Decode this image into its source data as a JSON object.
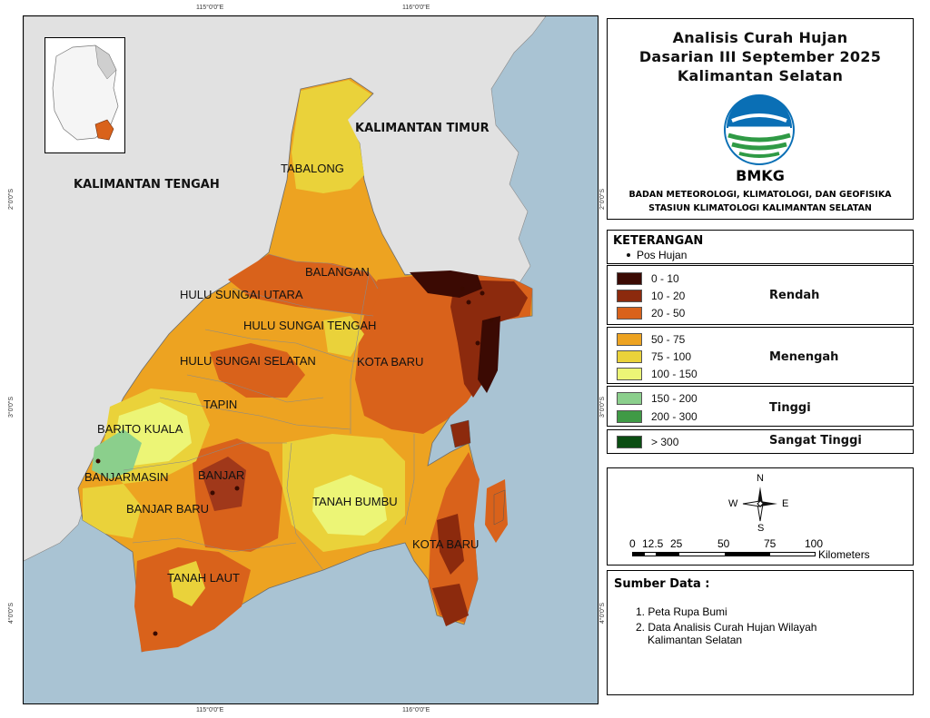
{
  "title": {
    "line1": "Analisis Curah Hujan",
    "line2": "Dasarian III September 2025",
    "line3": "Kalimantan Selatan"
  },
  "logo": {
    "text": "BMKG",
    "icon": "bmkg-logo"
  },
  "agency": {
    "line1": "BADAN METEOROLOGI, KLIMATOLOGI, DAN GEOFISIKA",
    "line2": "STASIUN KLIMATOLOGI KALIMANTAN SELATAN"
  },
  "legend": {
    "title": "KETERANGAN",
    "pos_hujan": "Pos Hujan",
    "groups": [
      {
        "category": "Rendah",
        "classes": [
          {
            "label": "0 - 10",
            "color": "#3b0a03"
          },
          {
            "label": "10 - 20",
            "color": "#8c2a0d"
          },
          {
            "label": "20 - 50",
            "color": "#d9621b"
          }
        ]
      },
      {
        "category": "Menengah",
        "classes": [
          {
            "label": "50 - 75",
            "color": "#eda321"
          },
          {
            "label": "75 - 100",
            "color": "#ead23a"
          },
          {
            "label": "100 - 150",
            "color": "#ecf576"
          }
        ]
      },
      {
        "category": "Tinggi",
        "classes": [
          {
            "label": "150 - 200",
            "color": "#8bcf8c"
          },
          {
            "label": "200 - 300",
            "color": "#3f9a45"
          }
        ]
      },
      {
        "category": "Sangat Tinggi",
        "classes": [
          {
            "label": "> 300",
            "color": "#0b4d12"
          }
        ]
      }
    ]
  },
  "compass": {
    "n": "N",
    "s": "S",
    "e": "E",
    "w": "W"
  },
  "scale": {
    "ticks": [
      "0",
      "12.5",
      "25",
      "50",
      "75",
      "100"
    ],
    "unit": "Kilometers"
  },
  "source": {
    "title": "Sumber Data :",
    "items": [
      "1. Peta Rupa Bumi",
      "2. Data Analisis Curah Hujan Wilayah",
      "Kalimantan Selatan"
    ]
  },
  "coords": {
    "top_left": "115°0'0\"E",
    "top_right": "116°0'0\"E",
    "bottom_left": "115°0'0\"E",
    "bottom_right": "116°0'0\"E",
    "left_upper": "2°0'0\"S",
    "left_mid": "3°0'0\"S",
    "left_lower": "4°0'0\"S",
    "right_upper": "2°0'0\"S",
    "right_mid": "3°0'0\"S",
    "right_lower": "4°0'0\"S"
  },
  "map_labels": {
    "neighbors": {
      "kalteng": "KALIMANTAN TENGAH",
      "kaltim": "KALIMANTAN TIMUR"
    },
    "regions": {
      "tabalong": "TABALONG",
      "balangan": "BALANGAN",
      "hsu": "HULU SUNGAI UTARA",
      "hst": "HULU SUNGAI TENGAH",
      "hss": "HULU SUNGAI SELATAN",
      "kotabaru1": "KOTA BARU",
      "tapin": "TAPIN",
      "barito": "BARITO KUALA",
      "banjarmasin": "BANJARMASIN",
      "banjar": "BANJAR",
      "banjarbaru": "BANJAR BARU",
      "tanahbumbu": "TANAH BUMBU",
      "kotabaru2": "KOTA BARU",
      "tanahlaut": "TANAH LAUT"
    }
  }
}
